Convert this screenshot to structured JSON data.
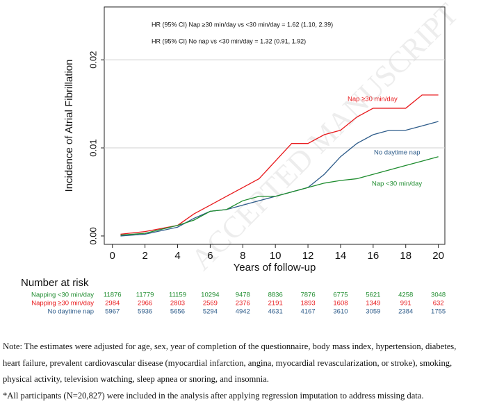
{
  "chart_data": {
    "type": "line",
    "annotations": [
      "HR (95% CI) Nap ≥30 min/day vs <30 min/day = 1.62 (1.10, 2.39)",
      "HR (95% CI) No nap vs <30 min/day = 1.32 (0.91, 1.92)"
    ],
    "xlabel": "Years of follow-up",
    "ylabel": "Incidence of Atrial Fibrillation",
    "xlim": [
      -0.5,
      20.4
    ],
    "ylim": [
      -0.00095,
      0.026
    ],
    "xticks": [
      0,
      2,
      4,
      6,
      8,
      10,
      12,
      14,
      16,
      18,
      20
    ],
    "yticks": [
      {
        "value": 0,
        "label": "0.00"
      },
      {
        "value": 0.01,
        "label": "0.01"
      },
      {
        "value": 0.02,
        "label": "0.02"
      }
    ],
    "grid": true,
    "x": [
      0.5,
      2,
      4,
      5,
      6,
      7,
      8,
      9,
      10,
      11,
      12,
      13,
      14,
      15,
      16,
      17,
      18,
      19,
      20
    ],
    "series": [
      {
        "name": "Nap ≥30 min/day",
        "color": "#e8191c",
        "values": [
          0.0002,
          0.0005,
          0.0012,
          0.0025,
          0.0035,
          0.0045,
          0.0055,
          0.0065,
          0.0085,
          0.0105,
          0.0105,
          0.0115,
          0.012,
          0.0135,
          0.0145,
          0.0145,
          0.0145,
          0.016,
          0.016
        ]
      },
      {
        "name": "No daytime nap",
        "color": "#2e5c8a",
        "values": [
          0.0,
          0.0002,
          0.001,
          0.002,
          0.0028,
          0.003,
          0.0035,
          0.004,
          0.0045,
          0.005,
          0.0055,
          0.007,
          0.009,
          0.0105,
          0.0115,
          0.012,
          0.012,
          0.0125,
          0.013
        ]
      },
      {
        "name": "Nap <30 min/day",
        "color": "#1e8c2e",
        "values": [
          0.0001,
          0.0003,
          0.0012,
          0.0018,
          0.0028,
          0.003,
          0.004,
          0.0045,
          0.0045,
          0.005,
          0.0055,
          0.006,
          0.0063,
          0.0065,
          0.007,
          0.0075,
          0.008,
          0.0085,
          0.009
        ]
      }
    ],
    "watermark": "ACCEPTED MANUSCRIPT",
    "risk_table": {
      "title": "Number at risk",
      "rows": [
        {
          "label": "Napping <30 min/day",
          "color": "#1e8c2e",
          "values": [
            "11876",
            "11779",
            "11159",
            "10294",
            "9478",
            "8836",
            "7876",
            "6775",
            "5621",
            "4258",
            "3048"
          ]
        },
        {
          "label": "Napping ≥30 min/day",
          "color": "#e8191c",
          "values": [
            "2984",
            "2966",
            "2803",
            "2569",
            "2376",
            "2191",
            "1893",
            "1608",
            "1349",
            "991",
            "632"
          ]
        },
        {
          "label": "No daytime nap",
          "color": "#2e5c8a",
          "values": [
            "5967",
            "5936",
            "5656",
            "5294",
            "4942",
            "4631",
            "4167",
            "3610",
            "3059",
            "2384",
            "1755"
          ]
        }
      ]
    }
  },
  "notes": [
    "Note: The estimates were adjusted for age, sex, year of completion of the questionnaire, body mass index, hypertension, diabetes,",
    "heart failure, prevalent cardiovascular disease (myocardial infarction, angina, myocardial revascularization, or stroke), smoking,",
    "physical activity, television watching, sleep apnea or snoring, and insomnia.",
    "*All participants (N=20,827) were included in the analysis after applying regression imputation to address missing data."
  ]
}
